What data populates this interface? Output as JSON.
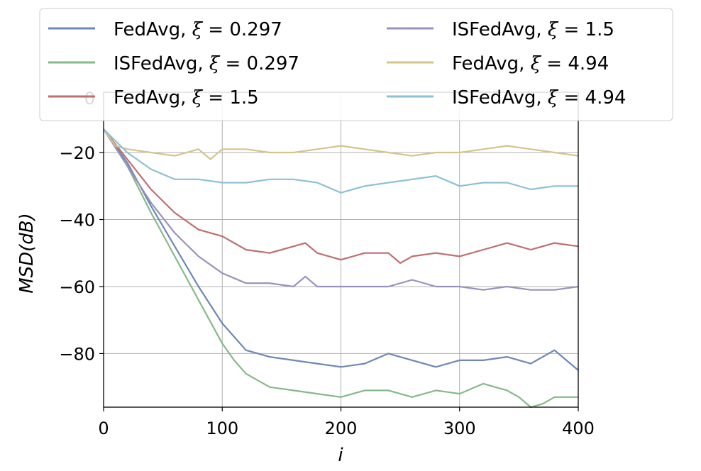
{
  "chart_data": {
    "type": "line",
    "title": "",
    "xlabel": "i",
    "ylabel": "MSD(dB)",
    "xlim": [
      0,
      400
    ],
    "ylim": [
      -96,
      -2
    ],
    "xticks": [
      0,
      100,
      200,
      300,
      400
    ],
    "yticks": [
      -20,
      -40,
      -60,
      -80
    ],
    "xtick_labels": [
      "0",
      "100",
      "200",
      "300",
      "400"
    ],
    "ytick_labels": [
      "−20",
      "−40",
      "−60",
      "−80"
    ],
    "overlapped_tick_label": "0",
    "grid": true,
    "legend_position": "top",
    "legend_columns": 2,
    "series": [
      {
        "name": "FedAvg, ξ = 0.297",
        "label_prefix": "FedAvg, ",
        "label_var": "ξ",
        "label_eq": " = 0.297",
        "color": "#6e87b6",
        "x": [
          0,
          20,
          40,
          60,
          80,
          100,
          120,
          140,
          160,
          180,
          200,
          220,
          240,
          260,
          280,
          300,
          320,
          340,
          360,
          380,
          390,
          400
        ],
        "y": [
          -13,
          -23,
          -36,
          -48,
          -60,
          -71,
          -79,
          -81,
          -82,
          -83,
          -84,
          -83,
          -80,
          -82,
          -84,
          -82,
          -82,
          -81,
          -83,
          -79,
          -82,
          -85
        ]
      },
      {
        "name": "ISFedAvg, ξ = 0.297",
        "label_prefix": "ISFedAvg, ",
        "label_var": "ξ",
        "label_eq": " = 0.297",
        "color": "#86b88a",
        "x": [
          0,
          20,
          40,
          60,
          80,
          100,
          110,
          120,
          140,
          160,
          180,
          200,
          220,
          240,
          260,
          280,
          300,
          320,
          340,
          350,
          360,
          370,
          380,
          400
        ],
        "y": [
          -13,
          -24,
          -38,
          -51,
          -64,
          -77,
          -82,
          -86,
          -90,
          -91,
          -92,
          -93,
          -91,
          -91,
          -93,
          -91,
          -92,
          -89,
          -91,
          -93,
          -96,
          -95,
          -93,
          -93
        ]
      },
      {
        "name": "FedAvg, ξ = 1.5",
        "label_prefix": "FedAvg, ",
        "label_var": "ξ",
        "label_eq": " = 1.5",
        "color": "#bf6e72",
        "x": [
          0,
          20,
          40,
          60,
          80,
          100,
          120,
          140,
          160,
          170,
          180,
          200,
          220,
          240,
          250,
          260,
          280,
          300,
          320,
          340,
          360,
          380,
          400
        ],
        "y": [
          -13,
          -22,
          -31,
          -38,
          -43,
          -45,
          -49,
          -50,
          -48,
          -47,
          -50,
          -52,
          -50,
          -50,
          -53,
          -51,
          -50,
          -51,
          -49,
          -47,
          -49,
          -47,
          -48
        ]
      },
      {
        "name": "ISFedAvg, ξ = 1.5",
        "label_prefix": "ISFedAvg, ",
        "label_var": "ξ",
        "label_eq": " = 1.5",
        "color": "#9a90bd",
        "x": [
          0,
          20,
          40,
          60,
          80,
          100,
          120,
          140,
          160,
          170,
          180,
          200,
          220,
          240,
          260,
          280,
          300,
          320,
          340,
          360,
          380,
          400
        ],
        "y": [
          -13,
          -24,
          -35,
          -44,
          -51,
          -56,
          -59,
          -59,
          -60,
          -57,
          -60,
          -60,
          -60,
          -60,
          -58,
          -60,
          -60,
          -61,
          -60,
          -61,
          -61,
          -60
        ]
      },
      {
        "name": "FedAvg, ξ = 4.94",
        "label_prefix": "FedAvg, ",
        "label_var": "ξ",
        "label_eq": " = 4.94",
        "color": "#d4c48a",
        "x": [
          0,
          10,
          20,
          40,
          60,
          80,
          90,
          100,
          120,
          140,
          160,
          180,
          200,
          220,
          240,
          260,
          280,
          300,
          320,
          340,
          360,
          380,
          400
        ],
        "y": [
          -13,
          -18,
          -19,
          -20,
          -21,
          -19,
          -22,
          -19,
          -19,
          -20,
          -20,
          -19,
          -18,
          -19,
          -20,
          -21,
          -20,
          -20,
          -19,
          -18,
          -19,
          -20,
          -21
        ]
      },
      {
        "name": "ISFedAvg, ξ = 4.94",
        "label_prefix": "ISFedAvg, ",
        "label_var": "ξ",
        "label_eq": " = 4.94",
        "color": "#8dc0d4",
        "x": [
          0,
          20,
          40,
          60,
          80,
          100,
          120,
          140,
          160,
          180,
          200,
          220,
          240,
          260,
          280,
          300,
          320,
          340,
          360,
          380,
          400
        ],
        "y": [
          -13,
          -20,
          -25,
          -28,
          -28,
          -29,
          -29,
          -28,
          -28,
          -29,
          -32,
          -30,
          -29,
          -28,
          -27,
          -30,
          -29,
          -29,
          -31,
          -30,
          -30
        ]
      }
    ]
  }
}
